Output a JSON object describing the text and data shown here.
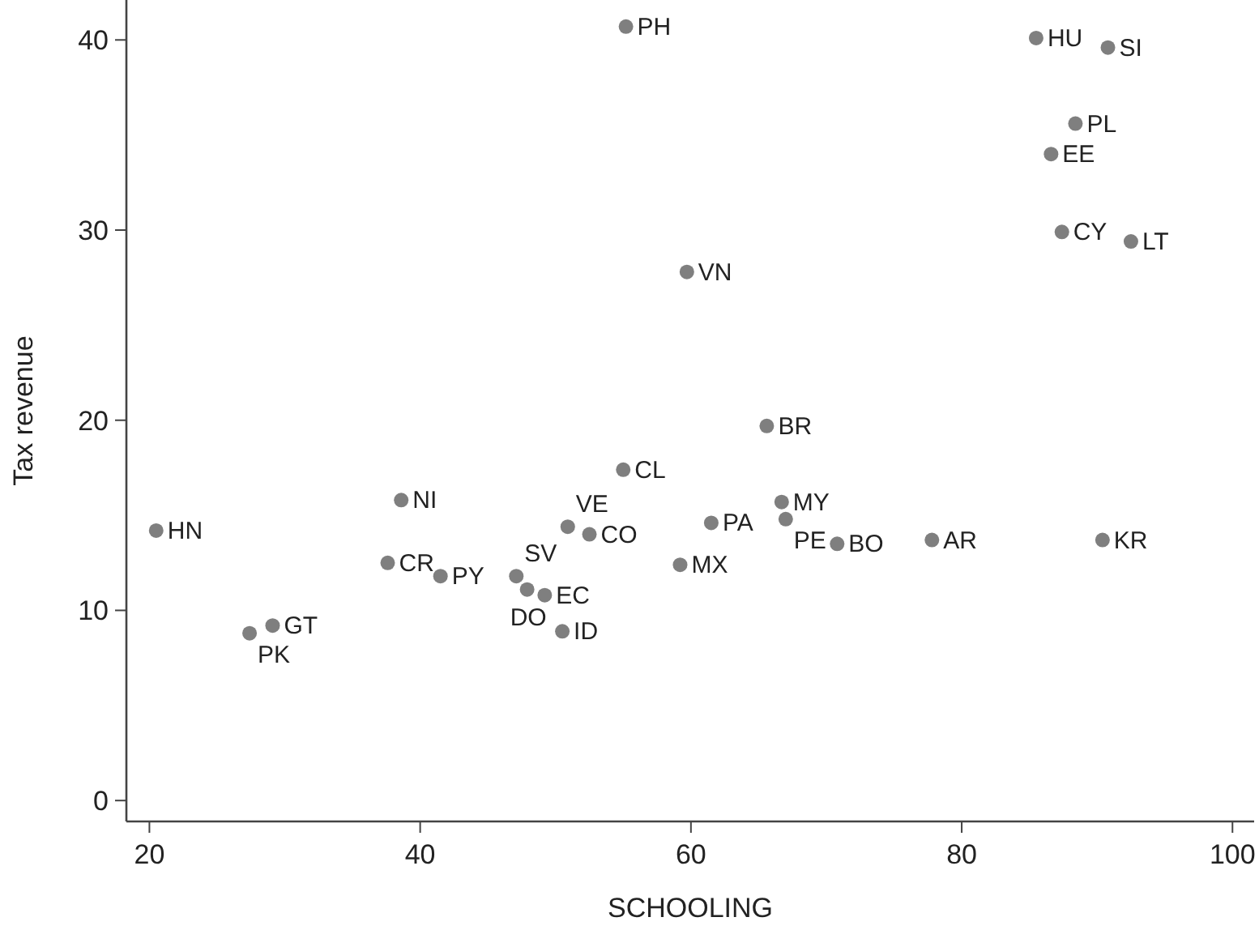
{
  "chart_data": {
    "type": "scatter",
    "xlabel": "SCHOOLING",
    "ylabel": "Tax revenue",
    "xlim": [
      18.3,
      101.6
    ],
    "ylim": [
      -1.1,
      42.1
    ],
    "xticks": [
      20,
      40,
      60,
      80,
      100
    ],
    "yticks": [
      0,
      10,
      20,
      30,
      40
    ],
    "marker": "circle",
    "grid": false,
    "series": [
      {
        "color": "#7f7f7f",
        "x": [
          20.5,
          38.6,
          37.6,
          41.5,
          27.4,
          29.1,
          47.1,
          47.9,
          49.2,
          50.5,
          50.9,
          52.5,
          55.0,
          65.6,
          66.7,
          67.0,
          61.5,
          59.2,
          70.8,
          77.8,
          90.4,
          55.2,
          85.5,
          90.8,
          88.4,
          86.6,
          87.4,
          92.5,
          59.7
        ],
        "values": [
          14.2,
          15.8,
          12.5,
          11.8,
          8.8,
          9.2,
          11.8,
          11.1,
          10.8,
          8.9,
          14.4,
          14.0,
          17.4,
          19.7,
          15.7,
          14.8,
          14.6,
          12.4,
          13.5,
          13.7,
          13.7,
          40.7,
          40.1,
          39.6,
          35.6,
          34.0,
          29.9,
          29.4,
          27.8
        ]
      }
    ],
    "annotations": [
      {
        "text": "HN",
        "x": 20.5,
        "y": 14.2
      },
      {
        "text": "NI",
        "x": 38.6,
        "y": 15.8
      },
      {
        "text": "CR",
        "x": 37.6,
        "y": 12.5
      },
      {
        "text": "PY",
        "x": 41.5,
        "y": 11.8
      },
      {
        "text": "PK",
        "x": 27.4,
        "y": 8.8
      },
      {
        "text": "GT",
        "x": 29.1,
        "y": 9.2
      },
      {
        "text": "SV",
        "x": 47.1,
        "y": 11.8
      },
      {
        "text": "DO",
        "x": 47.9,
        "y": 11.1
      },
      {
        "text": "EC",
        "x": 49.2,
        "y": 10.8
      },
      {
        "text": "ID",
        "x": 50.5,
        "y": 8.9
      },
      {
        "text": "VE",
        "x": 50.9,
        "y": 14.4
      },
      {
        "text": "CO",
        "x": 52.5,
        "y": 14.0
      },
      {
        "text": "CL",
        "x": 55.0,
        "y": 17.4
      },
      {
        "text": "BR",
        "x": 65.6,
        "y": 19.7
      },
      {
        "text": "MY",
        "x": 66.7,
        "y": 15.7
      },
      {
        "text": "PE",
        "x": 67.0,
        "y": 14.8
      },
      {
        "text": "PA",
        "x": 61.5,
        "y": 14.6
      },
      {
        "text": "MX",
        "x": 59.2,
        "y": 12.4
      },
      {
        "text": "BO",
        "x": 70.8,
        "y": 13.5
      },
      {
        "text": "AR",
        "x": 77.8,
        "y": 13.7
      },
      {
        "text": "KR",
        "x": 90.4,
        "y": 13.7
      },
      {
        "text": "PH",
        "x": 55.2,
        "y": 40.7
      },
      {
        "text": "HU",
        "x": 85.5,
        "y": 40.1
      },
      {
        "text": "SI",
        "x": 90.8,
        "y": 39.6
      },
      {
        "text": "PL",
        "x": 88.4,
        "y": 35.6
      },
      {
        "text": "EE",
        "x": 86.6,
        "y": 34.0
      },
      {
        "text": "CY",
        "x": 87.4,
        "y": 29.9
      },
      {
        "text": "LT",
        "x": 92.5,
        "y": 29.4
      },
      {
        "text": "VN",
        "x": 59.7,
        "y": 27.8
      }
    ]
  }
}
